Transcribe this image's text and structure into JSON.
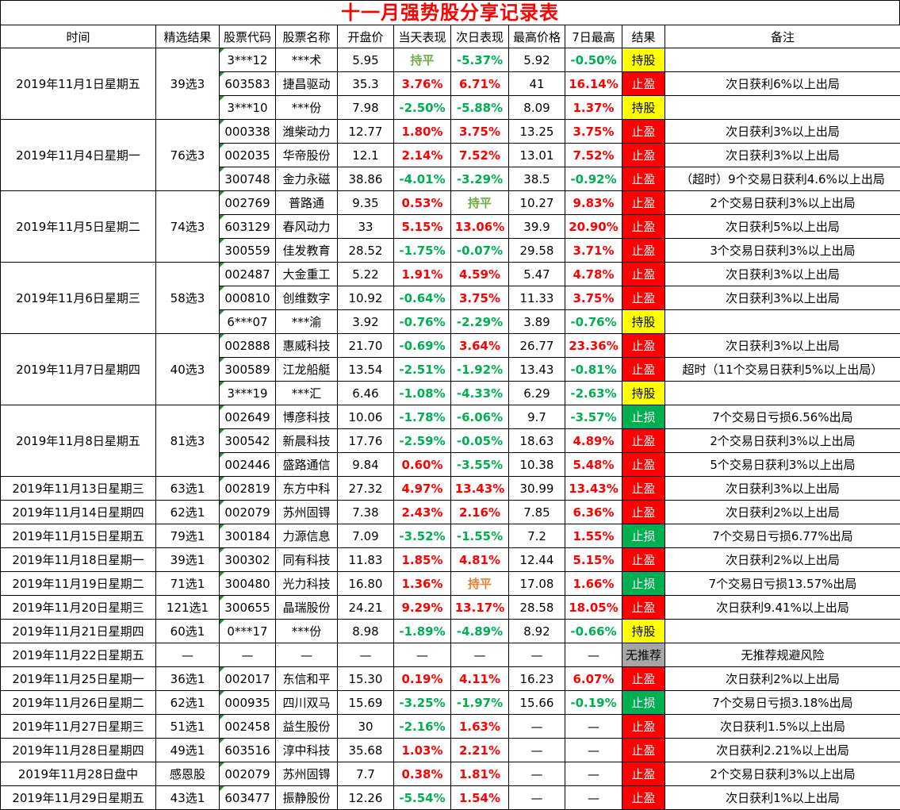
{
  "title": "十一月强势股分享记录表",
  "headers": [
    "时间",
    "精选结果",
    "股票代码",
    "股票名称",
    "开盘价",
    "当天表现",
    "次日表现",
    "最高价格",
    "7日最高",
    "结果",
    "备注"
  ],
  "groups": [
    {
      "date": "2019年11月1日星期五",
      "selection": "39选3",
      "rows": [
        {
          "code": "3***12",
          "name": "***术",
          "open": "5.95",
          "today": "持平",
          "next": "-5.37%",
          "high": "5.92",
          "high7": "-0.50%",
          "result": "持股",
          "note": ""
        },
        {
          "code": "603583",
          "name": "捷昌驱动",
          "open": "35.3",
          "today": "3.76%",
          "next": "6.71%",
          "high": "41",
          "high7": "16.14%",
          "result": "止盈",
          "note": "次日获利6%以上出局"
        },
        {
          "code": "3***10",
          "name": "***份",
          "open": "7.98",
          "today": "-2.50%",
          "next": "-5.88%",
          "high": "8.09",
          "high7": "1.37%",
          "result": "持股",
          "note": ""
        }
      ]
    },
    {
      "date": "2019年11月4日星期一",
      "selection": "76选3",
      "rows": [
        {
          "code": "000338",
          "name": "潍柴动力",
          "open": "12.77",
          "today": "1.80%",
          "next": "3.75%",
          "high": "13.25",
          "high7": "3.75%",
          "result": "止盈",
          "note": "次日获利3%以上出局"
        },
        {
          "code": "002035",
          "name": "华帝股份",
          "open": "12.1",
          "today": "2.14%",
          "next": "7.52%",
          "high": "13.01",
          "high7": "7.52%",
          "result": "止盈",
          "note": "次日获利3%以上出局"
        },
        {
          "code": "300748",
          "name": "金力永磁",
          "open": "38.86",
          "today": "-4.01%",
          "next": "-3.29%",
          "high": "38.5",
          "high7": "-0.92%",
          "result": "止盈",
          "note": "（超时）9个交易日获利4.6%以上出局"
        }
      ]
    },
    {
      "date": "2019年11月5日星期二",
      "selection": "74选3",
      "rows": [
        {
          "code": "002769",
          "name": "普路通",
          "open": "9.35",
          "today": "0.53%",
          "next": "持平",
          "high": "10.27",
          "high7": "9.83%",
          "result": "止盈",
          "note": "2个交易日获利3%以上出局"
        },
        {
          "code": "603129",
          "name": "春风动力",
          "open": "33",
          "today": "5.15%",
          "next": "13.06%",
          "high": "39.9",
          "high7": "20.90%",
          "result": "止盈",
          "note": "次日获利5%以上出局"
        },
        {
          "code": "300559",
          "name": "佳发教育",
          "open": "28.52",
          "today": "-1.75%",
          "next": "-0.07%",
          "high": "29.58",
          "high7": "3.71%",
          "result": "止盈",
          "note": "3个交易日获利3%以上出局"
        }
      ]
    },
    {
      "date": "2019年11月6日星期三",
      "selection": "58选3",
      "rows": [
        {
          "code": "002487",
          "name": "大金重工",
          "open": "5.22",
          "today": "1.91%",
          "next": "4.59%",
          "high": "5.47",
          "high7": "4.78%",
          "result": "止盈",
          "note": "次日获利3%以上出局"
        },
        {
          "code": "000810",
          "name": "创维数字",
          "open": "10.92",
          "today": "-0.64%",
          "next": "3.75%",
          "high": "11.33",
          "high7": "3.75%",
          "result": "止盈",
          "note": "次日获利3%以上出局"
        },
        {
          "code": "6***07",
          "name": "***渝",
          "open": "3.92",
          "today": "-0.76%",
          "next": "-2.29%",
          "high": "3.89",
          "high7": "-0.76%",
          "result": "持股",
          "note": ""
        }
      ]
    },
    {
      "date": "2019年11月7日星期四",
      "selection": "40选3",
      "rows": [
        {
          "code": "002888",
          "name": "惠威科技",
          "open": "21.70",
          "today": "-0.69%",
          "next": "3.64%",
          "high": "26.77",
          "high7": "23.36%",
          "result": "止盈",
          "note": "次日获利3%以上出局"
        },
        {
          "code": "300589",
          "name": "江龙船艇",
          "open": "13.54",
          "today": "-2.51%",
          "next": "-1.92%",
          "high": "13.43",
          "high7": "-0.81%",
          "result": "止盈",
          "note": "超时（11个交易日获利5%以上出局）"
        },
        {
          "code": "3***19",
          "name": "***汇",
          "open": "6.46",
          "today": "-1.08%",
          "next": "-4.33%",
          "high": "6.29",
          "high7": "-2.63%",
          "result": "持股",
          "note": ""
        }
      ]
    },
    {
      "date": "2019年11月8日星期五",
      "selection": "81选3",
      "rows": [
        {
          "code": "002649",
          "name": "博彦科技",
          "open": "10.06",
          "today": "-1.78%",
          "next": "-6.06%",
          "high": "9.7",
          "high7": "-3.57%",
          "result": "止损",
          "note": "7个交易日亏损6.56%出局"
        },
        {
          "code": "300542",
          "name": "新晨科技",
          "open": "17.76",
          "today": "-2.59%",
          "next": "-0.05%",
          "high": "18.63",
          "high7": "4.89%",
          "result": "止盈",
          "note": "2个交易日获利3%以上出局"
        },
        {
          "code": "002446",
          "name": "盛路通信",
          "open": "9.84",
          "today": "0.60%",
          "next": "-3.55%",
          "high": "10.38",
          "high7": "5.48%",
          "result": "止盈",
          "note": "5个交易日获利3%以上出局"
        }
      ]
    },
    {
      "date": "2019年11月13日星期三",
      "selection": "63选1",
      "rows": [
        {
          "code": "002819",
          "name": "东方中科",
          "open": "27.32",
          "today": "4.97%",
          "next": "13.43%",
          "high": "30.99",
          "high7": "13.43%",
          "result": "止盈",
          "note": "次日获利3%以上出局"
        }
      ]
    },
    {
      "date": "2019年11月14日星期四",
      "selection": "62选1",
      "rows": [
        {
          "code": "002079",
          "name": "苏州固锝",
          "open": "7.38",
          "today": "2.43%",
          "next": "2.16%",
          "high": "7.85",
          "high7": "6.36%",
          "result": "止盈",
          "note": "次日获利2%以上出局"
        }
      ]
    },
    {
      "date": "2019年11月15日星期五",
      "selection": "79选1",
      "rows": [
        {
          "code": "300184",
          "name": "力源信息",
          "open": "7.09",
          "today": "-3.52%",
          "next": "-1.55%",
          "high": "7.2",
          "high7": "1.55%",
          "result": "止损",
          "note": "7个交易日亏损6.77%出局"
        }
      ]
    },
    {
      "date": "2019年11月18日星期一",
      "selection": "39选1",
      "rows": [
        {
          "code": "300302",
          "name": "同有科技",
          "open": "11.83",
          "today": "1.85%",
          "next": "4.81%",
          "high": "12.44",
          "high7": "5.15%",
          "result": "止盈",
          "note": "次日获利2%以上出局"
        }
      ]
    },
    {
      "date": "2019年11月19日星期二",
      "selection": "71选1",
      "rows": [
        {
          "code": "300480",
          "name": "光力科技",
          "open": "16.80",
          "today": "1.36%",
          "next": "持平",
          "high": "17.08",
          "high7": "1.66%",
          "result": "止损",
          "note": "7个交易日亏损13.57%出局"
        }
      ]
    },
    {
      "date": "2019年11月20日星期三",
      "selection": "121选1",
      "rows": [
        {
          "code": "300655",
          "name": "晶瑞股份",
          "open": "24.21",
          "today": "9.29%",
          "next": "13.17%",
          "high": "28.58",
          "high7": "18.05%",
          "result": "止盈",
          "note": "次日获利9.41%以上出局"
        }
      ]
    },
    {
      "date": "2019年11月21日星期四",
      "selection": "60选1",
      "rows": [
        {
          "code": "0***17",
          "name": "***份",
          "open": "8.98",
          "today": "-1.89%",
          "next": "-4.89%",
          "high": "8.92",
          "high7": "-0.66%",
          "result": "持股",
          "note": ""
        }
      ]
    },
    {
      "date": "2019年11月22日星期五",
      "selection": "—",
      "rows": [
        {
          "code": "—",
          "name": "—",
          "open": "—",
          "today": "—",
          "next": "—",
          "high": "—",
          "high7": "—",
          "result": "无推荐",
          "note": "无推荐规避风险"
        }
      ]
    },
    {
      "date": "2019年11月25日星期一",
      "selection": "36选1",
      "rows": [
        {
          "code": "002017",
          "name": "东信和平",
          "open": "15.30",
          "today": "0.19%",
          "next": "4.11%",
          "high": "16.23",
          "high7": "6.07%",
          "result": "止盈",
          "note": "次日获利2%以上出局"
        }
      ]
    },
    {
      "date": "2019年11月26日星期二",
      "selection": "62选1",
      "rows": [
        {
          "code": "000935",
          "name": "四川双马",
          "open": "15.69",
          "today": "-3.25%",
          "next": "-1.97%",
          "high": "15.66",
          "high7": "-0.19%",
          "result": "止损",
          "note": "7个交易日亏损3.18%出局"
        }
      ]
    },
    {
      "date": "2019年11月27日星期三",
      "selection": "51选1",
      "rows": [
        {
          "code": "002458",
          "name": "益生股份",
          "open": "30",
          "today": "-2.16%",
          "next": "1.63%",
          "high": "—",
          "high7": "—",
          "result": "止盈",
          "note": "次日获利1.5%以上出局"
        }
      ]
    },
    {
      "date": "2019年11月28日星期四",
      "selection": "49选1",
      "rows": [
        {
          "code": "603516",
          "name": "淳中科技",
          "open": "35.68",
          "today": "1.03%",
          "next": "2.21%",
          "high": "—",
          "high7": "—",
          "result": "止盈",
          "note": "次日获利2.21%以上出局"
        }
      ]
    },
    {
      "date": "2019年11月28日盘中",
      "selection": "感恩股",
      "rows": [
        {
          "code": "002079",
          "name": "苏州固锝",
          "open": "7.7",
          "today": "0.38%",
          "next": "1.81%",
          "high": "—",
          "high7": "—",
          "result": "止盈",
          "note": "2个交易日获利3%以上出局"
        }
      ]
    },
    {
      "date": "2019年11月29日星期五",
      "selection": "43选1",
      "rows": [
        {
          "code": "603477",
          "name": "振静股份",
          "open": "12.26",
          "today": "-5.54%",
          "next": "1.54%",
          "high": "—",
          "high7": "—",
          "result": "止盈",
          "note": "次日获利1%以上出局"
        }
      ]
    }
  ],
  "colors": {
    "title": "#ff0000",
    "up": "#ff0000",
    "down": "#00b050",
    "flat_green": "#70ad47",
    "flat_orange": "#ed7d31",
    "hold": "#ffff00",
    "take_profit": "#ff0000",
    "stop_loss": "#00b050",
    "no_pick": "#a6a6a6"
  }
}
